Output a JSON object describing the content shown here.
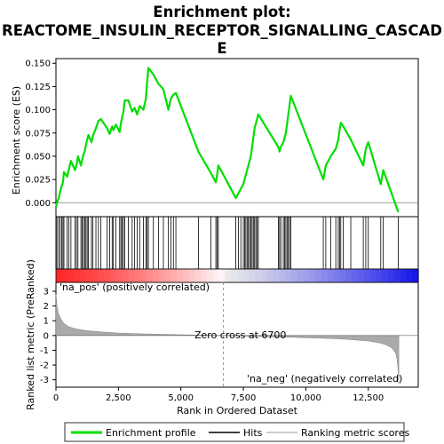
{
  "chart_data": {
    "type": "line",
    "title_line1": "Enrichment plot:",
    "title_line2": "REACTOME_INSULIN_RECEPTOR_SIGNALLING_CASCAD",
    "title_line3": "E",
    "es_ylabel": "Enrichment score (ES)",
    "metric_ylabel": "Ranked list metric (PreRanked)",
    "xlabel": "Rank in Ordered Dataset",
    "xlim": [
      0,
      14500
    ],
    "es_ylim": [
      -0.015,
      0.155
    ],
    "metric_ylim": [
      -3.5,
      3.6
    ],
    "x_ticks": [
      0,
      2500,
      5000,
      7500,
      10000,
      12500
    ],
    "x_tick_labels": [
      "0",
      "2,500",
      "5,000",
      "7,500",
      "10,000",
      "12,500"
    ],
    "es_ticks": [
      0.0,
      0.025,
      0.05,
      0.075,
      0.1,
      0.125,
      0.15
    ],
    "es_tick_labels": [
      "0.000",
      "0.025",
      "0.050",
      "0.075",
      "0.100",
      "0.125",
      "0.150"
    ],
    "metric_ticks": [
      -3,
      -2,
      -1,
      0,
      1,
      2,
      3
    ],
    "metric_tick_labels": [
      "-3",
      "-2",
      "-1",
      "0",
      "1",
      "2",
      "3"
    ],
    "zero_cross": 6700,
    "zero_cross_label": "Zero cross at 6700",
    "pos_label": "'na_pos' (positively correlated)",
    "neg_label": "'na_neg' (negatively correlated)",
    "legend": [
      "Enrichment profile",
      "Hits",
      "Ranking metric scores"
    ],
    "colors": {
      "es_line": "#00dd00",
      "pos_label": "#cc0000",
      "neg_label": "#0000cc",
      "metric_fill": "#aaaaaa",
      "zero_line": "#999999"
    },
    "hits": [
      40,
      110,
      170,
      230,
      280,
      320,
      450,
      520,
      600,
      760,
      820,
      880,
      1000,
      1050,
      1100,
      1150,
      1200,
      1250,
      1300,
      1420,
      1480,
      1600,
      1700,
      1800,
      2050,
      2150,
      2250,
      2300,
      2400,
      2550,
      2600,
      2650,
      2700,
      2750,
      2900,
      3050,
      3150,
      3250,
      3350,
      3500,
      3600,
      3650,
      3700,
      3900,
      4100,
      4300,
      4500,
      4600,
      4700,
      4800,
      5700,
      6200,
      6400,
      6450,
      6500,
      7200,
      7300,
      7400,
      7500,
      7550,
      7600,
      7650,
      7700,
      7750,
      7800,
      7850,
      7900,
      7950,
      8000,
      8050,
      8100,
      8900,
      8950,
      9000,
      9100,
      9150,
      9200,
      9250,
      9300,
      9350,
      9400,
      10700,
      10800,
      11000,
      11200,
      11300,
      11350,
      11400,
      11500,
      11800,
      12300,
      12400,
      12500,
      13000,
      13100,
      13700
    ],
    "es_profile": {
      "x": [
        0,
        40,
        110,
        170,
        230,
        280,
        320,
        450,
        520,
        600,
        760,
        820,
        880,
        1000,
        1050,
        1100,
        1150,
        1200,
        1250,
        1300,
        1420,
        1480,
        1600,
        1700,
        1800,
        2050,
        2150,
        2250,
        2300,
        2400,
        2550,
        2600,
        2650,
        2700,
        2750,
        2900,
        3050,
        3150,
        3250,
        3350,
        3500,
        3600,
        3650,
        3700,
        3900,
        4100,
        4300,
        4500,
        4600,
        4700,
        4800,
        5700,
        6200,
        6400,
        6450,
        6500,
        7200,
        7300,
        7400,
        7500,
        7550,
        7600,
        7650,
        7700,
        7750,
        7800,
        7850,
        7900,
        7950,
        8000,
        8050,
        8100,
        8900,
        8950,
        9000,
        9100,
        9150,
        9200,
        9250,
        9300,
        9350,
        9400,
        10700,
        10800,
        11000,
        11200,
        11300,
        11350,
        11400,
        11500,
        11800,
        12300,
        12400,
        12500,
        13000,
        13100,
        13700
      ],
      "y": [
        -0.005,
        0.0,
        0.005,
        0.012,
        0.018,
        0.022,
        0.033,
        0.028,
        0.036,
        0.045,
        0.035,
        0.04,
        0.05,
        0.04,
        0.046,
        0.052,
        0.055,
        0.062,
        0.068,
        0.073,
        0.065,
        0.072,
        0.08,
        0.088,
        0.09,
        0.08,
        0.074,
        0.082,
        0.078,
        0.084,
        0.076,
        0.086,
        0.092,
        0.098,
        0.11,
        0.11,
        0.098,
        0.102,
        0.095,
        0.104,
        0.1,
        0.112,
        0.13,
        0.145,
        0.138,
        0.128,
        0.122,
        0.1,
        0.112,
        0.116,
        0.118,
        0.055,
        0.032,
        0.022,
        0.03,
        0.04,
        0.005,
        0.01,
        0.015,
        0.02,
        0.025,
        0.03,
        0.035,
        0.04,
        0.045,
        0.05,
        0.06,
        0.07,
        0.08,
        0.085,
        0.09,
        0.095,
        0.06,
        0.055,
        0.06,
        0.065,
        0.07,
        0.075,
        0.085,
        0.095,
        0.105,
        0.115,
        0.025,
        0.04,
        0.05,
        0.058,
        0.068,
        0.078,
        0.086,
        0.082,
        0.068,
        0.04,
        0.058,
        0.065,
        0.02,
        0.035,
        -0.01
      ]
    },
    "metric_profile": {
      "x": [
        0,
        50,
        100,
        200,
        300,
        500,
        800,
        1200,
        1800,
        2500,
        3500,
        4500,
        5500,
        6200,
        6700,
        7500,
        8500,
        9500,
        10500,
        11500,
        12000,
        12500,
        12800,
        13000,
        13200,
        13400,
        13500,
        13600,
        13650,
        13700,
        13720
      ],
      "y": [
        2.8,
        1.9,
        1.5,
        1.1,
        0.85,
        0.6,
        0.45,
        0.33,
        0.24,
        0.17,
        0.11,
        0.07,
        0.03,
        0.01,
        0.0,
        -0.04,
        -0.08,
        -0.12,
        -0.17,
        -0.24,
        -0.3,
        -0.37,
        -0.45,
        -0.52,
        -0.62,
        -0.78,
        -0.95,
        -1.2,
        -1.6,
        -2.4,
        -3.3
      ]
    }
  }
}
